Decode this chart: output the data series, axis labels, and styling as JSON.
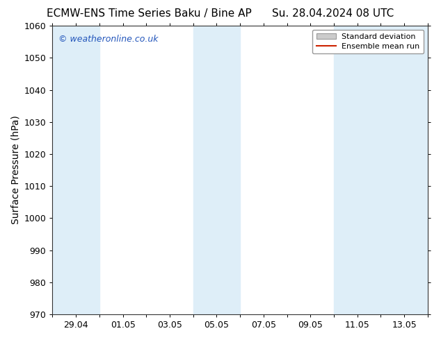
{
  "title_left": "ECMW-ENS Time Series Baku / Bine AP",
  "title_right": "Su. 28.04.2024 08 UTC",
  "ylabel": "Surface Pressure (hPa)",
  "ylim": [
    970,
    1060
  ],
  "yticks": [
    970,
    980,
    990,
    1000,
    1010,
    1020,
    1030,
    1040,
    1050,
    1060
  ],
  "xtick_labels": [
    "29.04",
    "01.05",
    "03.05",
    "05.05",
    "07.05",
    "09.05",
    "11.05",
    "13.05"
  ],
  "xtick_days": [
    1,
    3,
    5,
    7,
    9,
    11,
    13,
    15
  ],
  "xlim_days": [
    0,
    16
  ],
  "shaded_bands": [
    {
      "x_start": 0,
      "x_end": 2,
      "color": "#deeef8"
    },
    {
      "x_start": 6,
      "x_end": 8,
      "color": "#deeef8"
    },
    {
      "x_start": 12,
      "x_end": 16,
      "color": "#deeef8"
    }
  ],
  "legend_std_label": "Standard deviation",
  "legend_ens_label": "Ensemble mean run",
  "legend_std_facecolor": "#cccccc",
  "legend_std_edgecolor": "#999999",
  "legend_ens_color": "#cc2200",
  "watermark": "© weatheronline.co.uk",
  "watermark_color": "#2255bb",
  "background_color": "#ffffff",
  "plot_bg_color": "#ffffff",
  "title_fontsize": 11,
  "label_fontsize": 10,
  "tick_fontsize": 9,
  "watermark_fontsize": 9
}
